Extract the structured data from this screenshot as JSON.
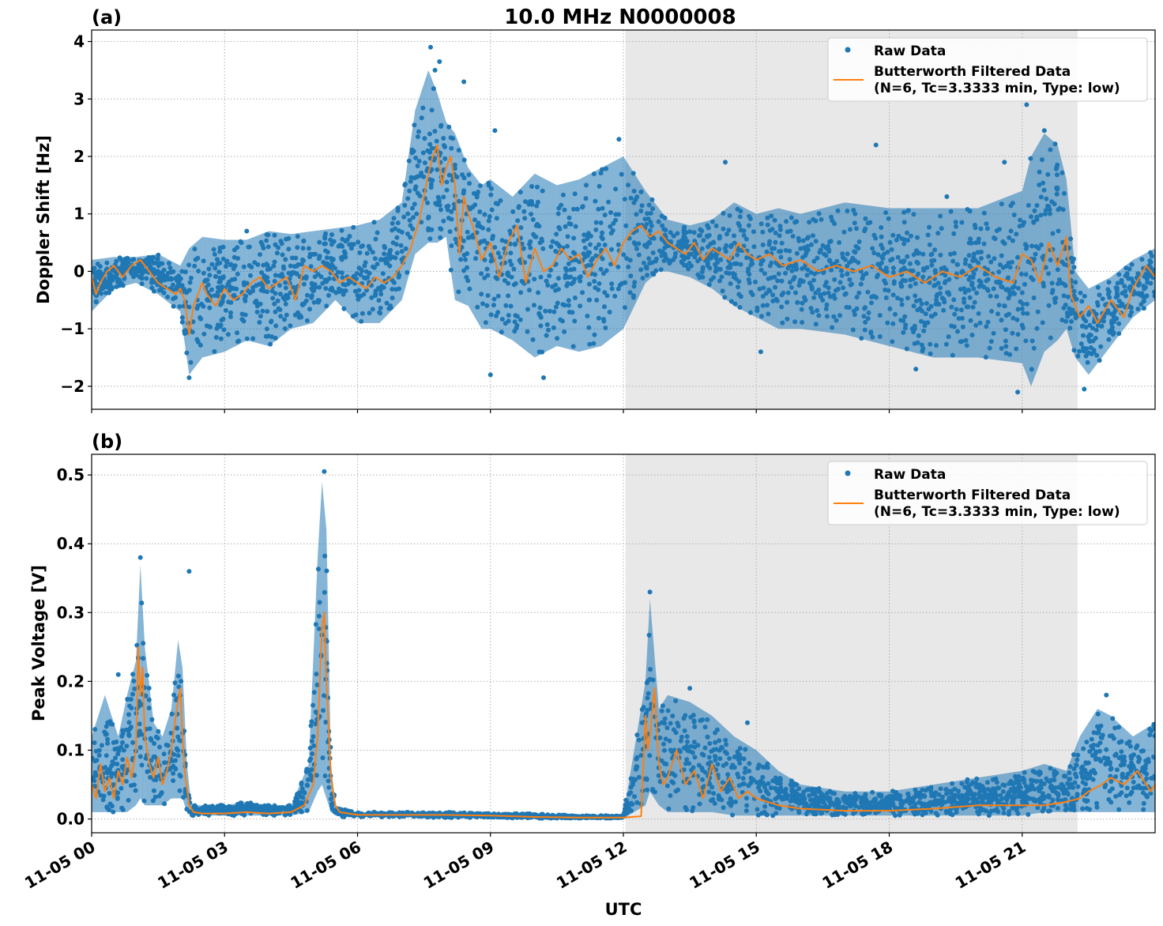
{
  "figure": {
    "title": "10.0 MHz N0000008",
    "xlabel": "UTC",
    "x_tick_labels": [
      "11-05 00",
      "11-05 03",
      "11-05 06",
      "11-05 09",
      "11-05 12",
      "11-05 15",
      "11-05 18",
      "11-05 21"
    ],
    "night_shading": {
      "start_hour": 12.05,
      "end_hour": 22.25,
      "color": "#e8e8e8"
    },
    "colors": {
      "raw": "#1f77b4",
      "filtered": "#ff7f0e",
      "grid": "#b0b0b0"
    }
  },
  "chart_data": [
    {
      "type": "scatter",
      "panel_label": "(a)",
      "ylabel": "Doppler Shift [Hz]",
      "xlim_hours": [
        0,
        24
      ],
      "ylim": [
        -2.4,
        4.2
      ],
      "y_ticks": [
        -2,
        -1,
        0,
        1,
        2,
        3,
        4
      ],
      "y_tick_labels": [
        "−2",
        "−1",
        "0",
        "1",
        "2",
        "3",
        "4"
      ],
      "legend_placement": "top-right",
      "grid": true,
      "series": [
        {
          "name": "Raw Data",
          "style": "scatter",
          "envelope": {
            "x_hours": [
              0,
              0.5,
              1.0,
              1.5,
              2.0,
              2.2,
              2.5,
              3.0,
              3.5,
              4.0,
              4.5,
              5.0,
              5.5,
              6.0,
              6.5,
              7.0,
              7.3,
              7.6,
              7.8,
              8.0,
              8.2,
              8.5,
              8.8,
              9.0,
              9.5,
              10.0,
              10.5,
              11.0,
              11.5,
              12.0,
              12.5,
              12.8,
              13.0,
              13.5,
              14.0,
              14.5,
              15.0,
              15.5,
              16.0,
              17.0,
              18.0,
              19.0,
              20.0,
              21.0,
              21.2,
              21.5,
              21.8,
              22.0,
              22.2,
              22.5,
              23.0,
              23.5,
              24.0
            ],
            "low": [
              -0.7,
              -0.3,
              -0.2,
              -0.4,
              -0.7,
              -1.8,
              -1.5,
              -1.4,
              -1.2,
              -1.3,
              -1.0,
              -0.9,
              -0.5,
              -0.9,
              -0.9,
              -0.5,
              0.3,
              0.5,
              0.5,
              0.6,
              -0.5,
              -0.6,
              -1.0,
              -1.0,
              -1.2,
              -1.5,
              -1.3,
              -1.4,
              -1.3,
              -1.0,
              -0.2,
              0.0,
              0.0,
              -0.1,
              -0.3,
              -0.6,
              -0.8,
              -1.0,
              -1.0,
              -1.1,
              -1.3,
              -1.5,
              -1.5,
              -1.6,
              -2.0,
              -1.4,
              -1.2,
              -1.0,
              -1.5,
              -1.8,
              -1.3,
              -0.8,
              -0.5
            ],
            "high": [
              0.2,
              0.25,
              0.25,
              0.3,
              0.1,
              0.4,
              0.6,
              0.55,
              0.55,
              0.7,
              0.65,
              0.7,
              0.75,
              0.8,
              0.9,
              1.2,
              2.8,
              3.5,
              3.1,
              2.6,
              2.4,
              1.8,
              1.5,
              1.6,
              1.3,
              1.7,
              1.5,
              1.6,
              1.8,
              2.0,
              1.4,
              1.1,
              0.9,
              0.8,
              0.9,
              1.2,
              1.0,
              1.1,
              1.0,
              1.2,
              1.1,
              1.1,
              1.1,
              1.4,
              2.0,
              2.4,
              2.2,
              1.6,
              0.0,
              -0.3,
              -0.1,
              0.2,
              0.4
            ]
          },
          "outliers": [
            {
              "x": 7.65,
              "y": 3.9
            },
            {
              "x": 7.75,
              "y": 3.5
            },
            {
              "x": 7.85,
              "y": 3.65
            },
            {
              "x": 8.4,
              "y": 3.3
            },
            {
              "x": 9.1,
              "y": 2.45
            },
            {
              "x": 11.9,
              "y": 2.3
            },
            {
              "x": 14.3,
              "y": 1.9
            },
            {
              "x": 17.7,
              "y": 2.2
            },
            {
              "x": 19.3,
              "y": 1.3
            },
            {
              "x": 20.6,
              "y": 1.9
            },
            {
              "x": 21.1,
              "y": 2.9
            },
            {
              "x": 21.5,
              "y": 2.45
            },
            {
              "x": 2.2,
              "y": -1.85
            },
            {
              "x": 9.0,
              "y": -1.8
            },
            {
              "x": 10.2,
              "y": -1.85
            },
            {
              "x": 15.1,
              "y": -1.4
            },
            {
              "x": 20.9,
              "y": -2.1
            },
            {
              "x": 22.4,
              "y": -2.05
            },
            {
              "x": 18.6,
              "y": -1.7
            },
            {
              "x": 3.5,
              "y": 0.7
            }
          ]
        },
        {
          "name": "Butterworth Filtered Data\n(N=6, Tc=3.3333 min, Type: low)",
          "style": "line",
          "x_hours": [
            0,
            0.1,
            0.2,
            0.35,
            0.5,
            0.7,
            0.9,
            1.1,
            1.3,
            1.5,
            1.7,
            1.9,
            2.0,
            2.1,
            2.2,
            2.3,
            2.4,
            2.5,
            2.6,
            2.8,
            3.0,
            3.2,
            3.4,
            3.6,
            3.8,
            4.0,
            4.2,
            4.4,
            4.6,
            4.8,
            5.0,
            5.2,
            5.4,
            5.6,
            5.8,
            6.0,
            6.2,
            6.4,
            6.6,
            6.8,
            7.0,
            7.2,
            7.4,
            7.5,
            7.6,
            7.7,
            7.8,
            7.9,
            8.0,
            8.1,
            8.2,
            8.3,
            8.4,
            8.5,
            8.6,
            8.8,
            9.0,
            9.2,
            9.4,
            9.6,
            9.8,
            10.0,
            10.2,
            10.4,
            10.6,
            10.8,
            11.0,
            11.2,
            11.4,
            11.6,
            11.8,
            12.0,
            12.2,
            12.4,
            12.6,
            12.8,
            13.0,
            13.2,
            13.4,
            13.6,
            13.8,
            14.0,
            14.2,
            14.4,
            14.6,
            14.8,
            15.0,
            15.3,
            15.6,
            16.0,
            16.4,
            16.8,
            17.2,
            17.6,
            18.0,
            18.4,
            18.8,
            19.2,
            19.6,
            20.0,
            20.4,
            20.8,
            21.0,
            21.2,
            21.4,
            21.6,
            21.8,
            22.0,
            22.1,
            22.2,
            22.3,
            22.5,
            22.7,
            23.0,
            23.3,
            23.5,
            23.8,
            24.0
          ],
          "y": [
            -0.1,
            -0.4,
            -0.2,
            0.0,
            0.1,
            -0.1,
            0.1,
            0.2,
            0.0,
            -0.2,
            -0.3,
            -0.4,
            -0.3,
            -0.5,
            -1.1,
            -0.6,
            -0.4,
            -0.2,
            -0.4,
            -0.6,
            -0.3,
            -0.5,
            -0.4,
            -0.2,
            -0.1,
            -0.3,
            -0.2,
            -0.1,
            -0.5,
            0.1,
            0.0,
            0.1,
            0.0,
            -0.2,
            -0.1,
            -0.2,
            -0.3,
            -0.1,
            -0.2,
            -0.1,
            0.1,
            0.4,
            0.9,
            1.3,
            1.7,
            2.0,
            2.2,
            1.5,
            1.8,
            2.0,
            1.5,
            0.3,
            1.3,
            1.0,
            0.8,
            0.2,
            0.5,
            -0.1,
            0.5,
            0.8,
            -0.2,
            0.4,
            0.0,
            0.1,
            0.4,
            0.2,
            0.3,
            -0.1,
            0.2,
            0.4,
            0.1,
            0.5,
            0.7,
            0.8,
            0.6,
            0.7,
            0.5,
            0.4,
            0.3,
            0.5,
            0.2,
            0.4,
            0.3,
            0.2,
            0.5,
            0.3,
            0.2,
            0.3,
            0.1,
            0.2,
            0.0,
            0.1,
            0.0,
            0.1,
            -0.1,
            0.0,
            -0.2,
            0.0,
            -0.1,
            0.1,
            -0.1,
            -0.2,
            0.3,
            0.2,
            -0.2,
            0.5,
            0.1,
            0.6,
            -0.4,
            -0.6,
            -0.8,
            -0.6,
            -0.9,
            -0.5,
            -0.8,
            -0.3,
            0.1,
            -0.1
          ]
        }
      ]
    },
    {
      "type": "scatter",
      "panel_label": "(b)",
      "ylabel": "Peak Voltage [V]",
      "xlim_hours": [
        0,
        24
      ],
      "ylim": [
        -0.02,
        0.53
      ],
      "y_ticks": [
        0.0,
        0.1,
        0.2,
        0.3,
        0.4,
        0.5
      ],
      "y_tick_labels": [
        "0.0",
        "0.1",
        "0.2",
        "0.3",
        "0.4",
        "0.5"
      ],
      "legend_placement": "top-right",
      "grid": true,
      "series": [
        {
          "name": "Raw Data",
          "style": "scatter",
          "envelope": {
            "x_hours": [
              0,
              0.3,
              0.6,
              0.8,
              1.0,
              1.1,
              1.2,
              1.4,
              1.6,
              1.8,
              1.95,
              2.05,
              2.15,
              2.25,
              2.5,
              3.0,
              3.5,
              4.0,
              4.5,
              4.9,
              5.1,
              5.2,
              5.3,
              5.4,
              5.5,
              5.7,
              6.0,
              7.0,
              8.0,
              9.0,
              10.0,
              11.0,
              11.5,
              12.0,
              12.5,
              12.6,
              12.7,
              12.8,
              13.0,
              13.5,
              14.0,
              14.5,
              15.0,
              15.5,
              16.0,
              17.0,
              18.0,
              19.0,
              20.0,
              21.0,
              21.5,
              22.0,
              22.3,
              22.7,
              23.0,
              23.5,
              24.0
            ],
            "low": [
              0.01,
              0.01,
              0.01,
              0.01,
              0.02,
              0.03,
              0.02,
              0.02,
              0.02,
              0.03,
              0.03,
              0.03,
              0.01,
              0.005,
              0.005,
              0.005,
              0.005,
              0.005,
              0.005,
              0.01,
              0.04,
              0.05,
              0.03,
              0.01,
              0.005,
              0.003,
              0.003,
              0.003,
              0.002,
              0.002,
              0.001,
              0.001,
              0.001,
              0.001,
              0.02,
              0.04,
              0.03,
              0.02,
              0.01,
              0.01,
              0.01,
              0.005,
              0.005,
              0.005,
              0.005,
              0.005,
              0.005,
              0.005,
              0.005,
              0.005,
              0.01,
              0.01,
              0.01,
              0.01,
              0.01,
              0.01,
              0.01
            ],
            "high": [
              0.12,
              0.18,
              0.12,
              0.18,
              0.23,
              0.37,
              0.25,
              0.14,
              0.12,
              0.16,
              0.26,
              0.22,
              0.08,
              0.02,
              0.02,
              0.02,
              0.025,
              0.02,
              0.02,
              0.08,
              0.38,
              0.49,
              0.42,
              0.08,
              0.02,
              0.015,
              0.01,
              0.01,
              0.01,
              0.008,
              0.008,
              0.005,
              0.005,
              0.005,
              0.2,
              0.32,
              0.24,
              0.16,
              0.18,
              0.17,
              0.15,
              0.12,
              0.1,
              0.07,
              0.05,
              0.04,
              0.04,
              0.05,
              0.06,
              0.07,
              0.08,
              0.07,
              0.12,
              0.16,
              0.15,
              0.12,
              0.14
            ]
          },
          "outliers": [
            {
              "x": 1.1,
              "y": 0.38
            },
            {
              "x": 2.2,
              "y": 0.36
            },
            {
              "x": 5.25,
              "y": 0.505
            },
            {
              "x": 12.6,
              "y": 0.33
            },
            {
              "x": 0.6,
              "y": 0.21
            },
            {
              "x": 13.5,
              "y": 0.19
            },
            {
              "x": 14.8,
              "y": 0.14
            },
            {
              "x": 22.9,
              "y": 0.18
            }
          ]
        },
        {
          "name": "Butterworth Filtered Data\n(N=6, Tc=3.3333 min, Type: low)",
          "style": "line",
          "x_hours": [
            0,
            0.1,
            0.2,
            0.3,
            0.4,
            0.5,
            0.6,
            0.7,
            0.8,
            0.9,
            1.0,
            1.05,
            1.1,
            1.15,
            1.2,
            1.3,
            1.4,
            1.5,
            1.6,
            1.7,
            1.8,
            1.9,
            2.0,
            2.05,
            2.1,
            2.2,
            2.3,
            2.5,
            3.0,
            3.5,
            4.0,
            4.5,
            4.8,
            5.0,
            5.1,
            5.2,
            5.25,
            5.3,
            5.4,
            5.5,
            5.6,
            5.8,
            6.0,
            7.0,
            8.0,
            9.0,
            10.0,
            11.0,
            12.0,
            12.4,
            12.5,
            12.55,
            12.6,
            12.7,
            12.8,
            12.9,
            13.0,
            13.2,
            13.4,
            13.6,
            13.8,
            14.0,
            14.2,
            14.4,
            14.6,
            14.8,
            15.0,
            15.5,
            16.0,
            17.0,
            18.0,
            19.0,
            20.0,
            21.0,
            21.5,
            22.0,
            22.3,
            22.5,
            22.8,
            23.0,
            23.3,
            23.6,
            23.9,
            24.0
          ],
          "y": [
            0.05,
            0.03,
            0.08,
            0.04,
            0.06,
            0.03,
            0.07,
            0.05,
            0.09,
            0.06,
            0.1,
            0.25,
            0.18,
            0.22,
            0.12,
            0.08,
            0.06,
            0.09,
            0.05,
            0.07,
            0.1,
            0.15,
            0.19,
            0.12,
            0.07,
            0.02,
            0.01,
            0.008,
            0.008,
            0.01,
            0.008,
            0.01,
            0.02,
            0.05,
            0.12,
            0.28,
            0.3,
            0.2,
            0.06,
            0.02,
            0.01,
            0.008,
            0.006,
            0.006,
            0.006,
            0.005,
            0.003,
            0.002,
            0.002,
            0.004,
            0.15,
            0.1,
            0.12,
            0.19,
            0.08,
            0.05,
            0.06,
            0.1,
            0.05,
            0.07,
            0.03,
            0.08,
            0.04,
            0.06,
            0.03,
            0.04,
            0.03,
            0.02,
            0.015,
            0.012,
            0.012,
            0.015,
            0.02,
            0.02,
            0.02,
            0.025,
            0.03,
            0.04,
            0.05,
            0.06,
            0.05,
            0.07,
            0.04,
            0.05
          ]
        }
      ]
    }
  ]
}
